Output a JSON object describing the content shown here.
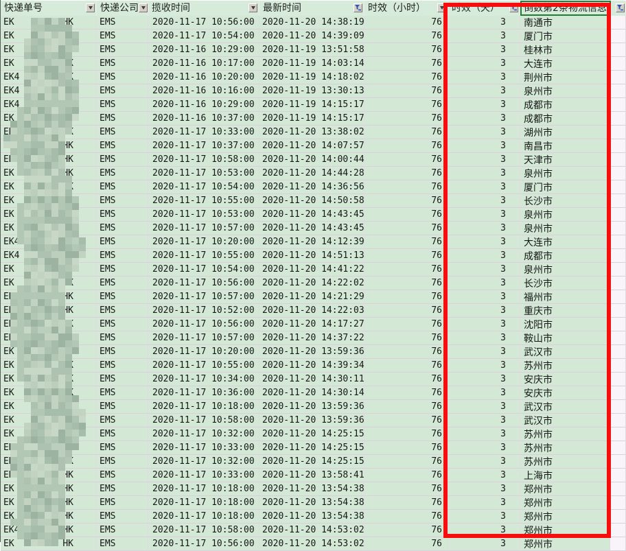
{
  "colors": {
    "cell_fill": "#d3e9d6",
    "header_fill": "#d6ebd9",
    "header_underline": "#3f7a3f",
    "gridline": "#dccfdc",
    "annotation_red": "#f70d0d",
    "selection_green": "#1e7e34",
    "funnel_icon_blue": "#2f55b4"
  },
  "table": {
    "columns": [
      {
        "label": "快递单号",
        "filter": "dropdown-icon",
        "width": 140,
        "name": "tracking-number"
      },
      {
        "label": "快递公司",
        "filter": "dropdown-icon",
        "width": 75,
        "name": "courier-company"
      },
      {
        "label": "揽收时间",
        "filter": "dropdown-icon",
        "width": 162,
        "name": "pickup-time"
      },
      {
        "label": "最新时间",
        "filter": "funnel-icon",
        "width": 153,
        "name": "latest-time"
      },
      {
        "label": "时效（小时）",
        "filter": "dropdown-icon",
        "width": 122,
        "name": "hours-elapsed"
      },
      {
        "label": "时效（天）",
        "filter": "funnel-icon",
        "width": 105,
        "name": "days-elapsed"
      },
      {
        "label": "倒数第2条物流信息",
        "filter": "funnel-icon",
        "width": 131,
        "name": "second-last-logistics",
        "selected": true
      },
      {
        "label": "",
        "filter": "funnel-icon",
        "width": 23,
        "name": "extra-column",
        "partial": true
      }
    ],
    "rows": [
      {
        "tracking_prefix": "EK",
        "tracking_suffix": "4HK",
        "company": "EMS",
        "pickup": "2020-11-17 10:56:00",
        "latest": "2020-11-20 14:38:19",
        "hours": "76",
        "days": "3",
        "city": "南通市"
      },
      {
        "tracking_prefix": "EK",
        "tracking_suffix": "0HK",
        "company": "EMS",
        "pickup": "2020-11-17 10:54:00",
        "latest": "2020-11-20 14:39:09",
        "hours": "76",
        "days": "3",
        "city": "厦门市"
      },
      {
        "tracking_prefix": "EK",
        "tracking_suffix": "HK",
        "company": "EMS",
        "pickup": "2020-11-16 10:29:00",
        "latest": "2020-11-19 13:51:58",
        "hours": "76",
        "days": "3",
        "city": "桂林市"
      },
      {
        "tracking_prefix": "EK",
        "tracking_suffix": "HK",
        "company": "EMS",
        "pickup": "2020-11-16 10:17:00",
        "latest": "2020-11-19 14:03:14",
        "hours": "76",
        "days": "3",
        "city": "大连市"
      },
      {
        "tracking_prefix": "EK4",
        "tracking_suffix": "HK",
        "company": "EMS",
        "pickup": "2020-11-16 10:20:00",
        "latest": "2020-11-19 14:18:02",
        "hours": "76",
        "days": "3",
        "city": "荆州市"
      },
      {
        "tracking_prefix": "EK4",
        "tracking_suffix": "7HK",
        "company": "EMS",
        "pickup": "2020-11-16 10:16:00",
        "latest": "2020-11-19 13:30:13",
        "hours": "76",
        "days": "3",
        "city": "泉州市"
      },
      {
        "tracking_prefix": "EK4",
        "tracking_suffix": "3HK",
        "company": "EMS",
        "pickup": "2020-11-16 10:29:00",
        "latest": "2020-11-19 14:15:17",
        "hours": "76",
        "days": "3",
        "city": "成都市"
      },
      {
        "tracking_prefix": "EK",
        "tracking_suffix": "HK",
        "company": "EMS",
        "pickup": "2020-11-16 10:37:00",
        "latest": "2020-11-19 14:15:17",
        "hours": "76",
        "days": "3",
        "city": "成都市"
      },
      {
        "tracking_prefix": "EK4",
        "tracking_suffix": "HK",
        "company": "EMS",
        "pickup": "2020-11-17 10:33:00",
        "latest": "2020-11-20 13:38:02",
        "hours": "76",
        "days": "3",
        "city": "湖州市"
      },
      {
        "tracking_prefix": "EK",
        "tracking_suffix": "HK",
        "company": "EMS",
        "pickup": "2020-11-17 10:37:00",
        "latest": "2020-11-20 14:07:57",
        "hours": "76",
        "days": "3",
        "city": "南昌市"
      },
      {
        "tracking_prefix": "EK",
        "tracking_suffix": "HK",
        "company": "EMS",
        "pickup": "2020-11-17 10:58:00",
        "latest": "2020-11-20 14:00:44",
        "hours": "76",
        "days": "3",
        "city": "天津市"
      },
      {
        "tracking_prefix": "EK",
        "tracking_suffix": "HK",
        "company": "EMS",
        "pickup": "2020-11-17 10:53:00",
        "latest": "2020-11-20 14:44:28",
        "hours": "76",
        "days": "3",
        "city": "泉州市"
      },
      {
        "tracking_prefix": "EK",
        "tracking_suffix": "HK",
        "company": "EMS",
        "pickup": "2020-11-17 10:54:00",
        "latest": "2020-11-20 14:36:56",
        "hours": "76",
        "days": "3",
        "city": "厦门市"
      },
      {
        "tracking_prefix": "EK",
        "tracking_suffix": "HK",
        "company": "EMS",
        "pickup": "2020-11-17 10:55:00",
        "latest": "2020-11-20 14:50:58",
        "hours": "76",
        "days": "3",
        "city": "长沙市"
      },
      {
        "tracking_prefix": "EK",
        "tracking_suffix": "HK",
        "company": "EMS",
        "pickup": "2020-11-17 10:53:00",
        "latest": "2020-11-20 14:43:45",
        "hours": "76",
        "days": "3",
        "city": "泉州市"
      },
      {
        "tracking_prefix": "EK",
        "tracking_suffix": "K",
        "company": "EMS",
        "pickup": "2020-11-17 10:57:00",
        "latest": "2020-11-20 14:43:45",
        "hours": "76",
        "days": "3",
        "city": "泉州市"
      },
      {
        "tracking_prefix": "EK4",
        "tracking_suffix": "K",
        "company": "EMS",
        "pickup": "2020-11-17 10:20:00",
        "latest": "2020-11-20 14:12:39",
        "hours": "76",
        "days": "3",
        "city": "大连市"
      },
      {
        "tracking_prefix": "EK4",
        "tracking_suffix": "K",
        "company": "EMS",
        "pickup": "2020-11-17 10:55:00",
        "latest": "2020-11-20 14:51:13",
        "hours": "76",
        "days": "3",
        "city": "成都市"
      },
      {
        "tracking_prefix": "EK",
        "tracking_suffix": "HK",
        "company": "EMS",
        "pickup": "2020-11-17 10:54:00",
        "latest": "2020-11-20 14:41:22",
        "hours": "76",
        "days": "3",
        "city": "泉州市"
      },
      {
        "tracking_prefix": "EK",
        "tracking_suffix": "HK",
        "company": "EMS",
        "pickup": "2020-11-17 10:56:00",
        "latest": "2020-11-20 14:22:02",
        "hours": "76",
        "days": "3",
        "city": "长沙市"
      },
      {
        "tracking_prefix": "EK4",
        "tracking_suffix": "HK",
        "company": "EMS",
        "pickup": "2020-11-17 10:57:00",
        "latest": "2020-11-20 14:21:29",
        "hours": "76",
        "days": "3",
        "city": "福州市"
      },
      {
        "tracking_prefix": "EK",
        "tracking_suffix": "HK",
        "company": "EMS",
        "pickup": "2020-11-17 10:52:00",
        "latest": "2020-11-20 14:22:03",
        "hours": "76",
        "days": "3",
        "city": "重庆市"
      },
      {
        "tracking_prefix": "EK",
        "tracking_suffix": "2HK",
        "company": "EMS",
        "pickup": "2020-11-17 10:56:00",
        "latest": "2020-11-20 14:17:27",
        "hours": "76",
        "days": "3",
        "city": "沈阳市"
      },
      {
        "tracking_prefix": "EK4",
        "tracking_suffix": "5HK",
        "company": "EMS",
        "pickup": "2020-11-17 10:57:00",
        "latest": "2020-11-20 14:37:22",
        "hours": "76",
        "days": "3",
        "city": "鞍山市"
      },
      {
        "tracking_prefix": "EK",
        "tracking_suffix": "HK",
        "company": "EMS",
        "pickup": "2020-11-17 10:20:00",
        "latest": "2020-11-20 13:59:36",
        "hours": "76",
        "days": "3",
        "city": "武汉市"
      },
      {
        "tracking_prefix": "EK",
        "tracking_suffix": "HK",
        "company": "EMS",
        "pickup": "2020-11-17 10:55:00",
        "latest": "2020-11-20 14:39:34",
        "hours": "76",
        "days": "3",
        "city": "苏州市"
      },
      {
        "tracking_prefix": "EK",
        "tracking_suffix": "HK",
        "company": "EMS",
        "pickup": "2020-11-17 10:34:00",
        "latest": "2020-11-20 14:30:11",
        "hours": "76",
        "days": "3",
        "city": "安庆市"
      },
      {
        "tracking_prefix": "EK",
        "tracking_suffix": "HK",
        "company": "EMS",
        "pickup": "2020-11-17 10:36:00",
        "latest": "2020-11-20 14:30:14",
        "hours": "76",
        "days": "3",
        "city": "安庆市"
      },
      {
        "tracking_prefix": "EK",
        "tracking_suffix": "5HK",
        "company": "EMS",
        "pickup": "2020-11-17 10:18:00",
        "latest": "2020-11-20 13:59:36",
        "hours": "76",
        "days": "3",
        "city": "武汉市"
      },
      {
        "tracking_prefix": "EK",
        "tracking_suffix": "4HK",
        "company": "EMS",
        "pickup": "2020-11-17 10:58:00",
        "latest": "2020-11-20 13:59:36",
        "hours": "76",
        "days": "3",
        "city": "武汉市"
      },
      {
        "tracking_prefix": "EK",
        "tracking_suffix": "07HK",
        "company": "EMS",
        "pickup": "2020-11-17 10:32:00",
        "latest": "2020-11-20 14:25:15",
        "hours": "76",
        "days": "3",
        "city": "苏州市"
      },
      {
        "tracking_prefix": "EK4",
        "tracking_suffix": "24HK",
        "company": "EMS",
        "pickup": "2020-11-17 10:33:00",
        "latest": "2020-11-20 14:25:15",
        "hours": "76",
        "days": "3",
        "city": "苏州市"
      },
      {
        "tracking_prefix": "EK",
        "tracking_suffix": "9HK",
        "company": "EMS",
        "pickup": "2020-11-17 10:32:00",
        "latest": "2020-11-20 14:25:15",
        "hours": "76",
        "days": "3",
        "city": "苏州市"
      },
      {
        "tracking_prefix": "EK",
        "tracking_suffix": "5HK",
        "company": "EMS",
        "pickup": "2020-11-17 10:33:00",
        "latest": "2020-11-20 13:58:41",
        "hours": "76",
        "days": "3",
        "city": "上海市"
      },
      {
        "tracking_prefix": "EK",
        "tracking_suffix": "HK",
        "company": "EMS",
        "pickup": "2020-11-17 10:18:00",
        "latest": "2020-11-20 13:54:38",
        "hours": "76",
        "days": "3",
        "city": "郑州市"
      },
      {
        "tracking_prefix": "EK",
        "tracking_suffix": "HK",
        "company": "EMS",
        "pickup": "2020-11-17 10:18:00",
        "latest": "2020-11-20 13:54:38",
        "hours": "76",
        "days": "3",
        "city": "郑州市"
      },
      {
        "tracking_prefix": "EK",
        "tracking_suffix": "1HK",
        "company": "EMS",
        "pickup": "2020-11-17 10:18:00",
        "latest": "2020-11-20 13:54:38",
        "hours": "76",
        "days": "3",
        "city": "郑州市"
      },
      {
        "tracking_prefix": "EK4",
        "tracking_suffix": "9HK",
        "company": "EMS",
        "pickup": "2020-11-17 10:58:00",
        "latest": "2020-11-20 14:53:02",
        "hours": "76",
        "days": "3",
        "city": "郑州市"
      },
      {
        "tracking_prefix": "EK",
        "tracking_suffix": "HK",
        "company": "EMS",
        "pickup": "2020-11-17 10:56:00",
        "latest": "2020-11-20 14:53:02",
        "hours": "76",
        "days": "3",
        "city": "郑州市",
        "partial": true
      }
    ]
  }
}
